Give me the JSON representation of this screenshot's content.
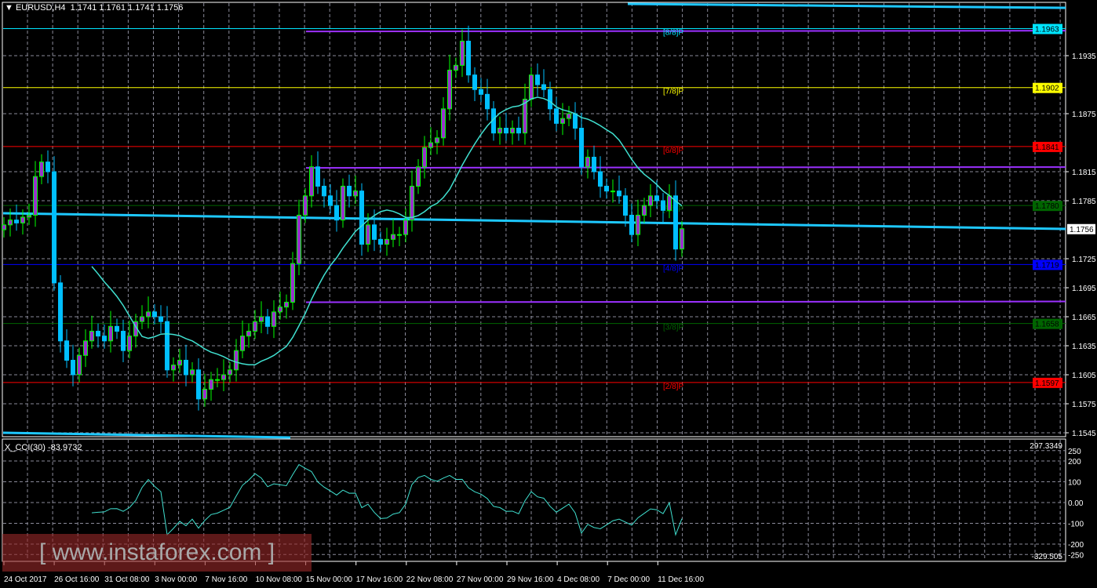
{
  "header": {
    "symbol": "EURUSD,H4",
    "ohlc": "1.1741 1.1761 1.1741 1.1756"
  },
  "indicator": {
    "title": "X_CCI(30) -83.9732",
    "max_label": "297.3349",
    "min_label": "-329.505",
    "ticks": [
      "250",
      "200",
      "100",
      "0.00",
      "-100",
      "-200",
      "-250"
    ],
    "tick_values": [
      250,
      200,
      100,
      0,
      -100,
      -200,
      -250
    ]
  },
  "price_axis": {
    "ticks": [
      "1.1935",
      "1.1875",
      "1.1815",
      "1.1785",
      "1.1725",
      "1.1695",
      "1.1665",
      "1.1635",
      "1.1605",
      "1.1575",
      "1.1545"
    ]
  },
  "murrey_levels": [
    {
      "label": "[8/8]P",
      "price": "1.1963",
      "color": "#00e5ff",
      "text": "#000"
    },
    {
      "label": "[7/8]P",
      "price": "1.1902",
      "color": "#ffff00",
      "text": "#000"
    },
    {
      "label": "[6/8]P",
      "price": "1.1841",
      "color": "#ff0000",
      "text": "#000"
    },
    {
      "label": "[5/8]P",
      "price": "1.1780",
      "color": "#006400",
      "text": "#000"
    },
    {
      "label": "[4/8]P",
      "price": "1.1719",
      "color": "#0000ff",
      "text": "#000"
    },
    {
      "label": "[3/8]P",
      "price": "1.1658",
      "color": "#006400",
      "text": "#000"
    },
    {
      "label": "[2/8]P",
      "price": "1.1597",
      "color": "#ff0000",
      "text": "#000"
    }
  ],
  "current_price": "1.1756",
  "time_axis": [
    "24 Oct 2017",
    "26 Oct 16:00",
    "31 Oct 08:00",
    "3 Nov 00:00",
    "7 Nov 16:00",
    "10 Nov 08:00",
    "15 Nov 00:00",
    "17 Nov 16:00",
    "22 Nov 08:00",
    "27 Nov 00:00",
    "29 Nov 16:00",
    "4 Dec 08:00",
    "7 Dec 00:00",
    "11 Dec 16:00"
  ],
  "closes": [
    1.176,
    1.1765,
    1.1762,
    1.1768,
    1.177,
    1.181,
    1.1825,
    1.1815,
    1.17,
    1.164,
    1.162,
    1.1605,
    1.1625,
    1.164,
    1.165,
    1.1645,
    1.164,
    1.1655,
    1.165,
    1.163,
    1.1645,
    1.166,
    1.1665,
    1.167,
    1.1665,
    1.166,
    1.161,
    1.1615,
    1.162,
    1.1605,
    1.161,
    1.158,
    1.159,
    1.16,
    1.16,
    1.1605,
    1.161,
    1.163,
    1.1645,
    1.165,
    1.166,
    1.1665,
    1.1655,
    1.167,
    1.1675,
    1.168,
    1.172,
    1.177,
    1.179,
    1.182,
    1.18,
    1.179,
    1.178,
    1.1765,
    1.18,
    1.179,
    1.1795,
    1.174,
    1.176,
    1.1745,
    1.174,
    1.1745,
    1.175,
    1.175,
    1.1765,
    1.18,
    1.182,
    1.184,
    1.1845,
    1.185,
    1.188,
    1.192,
    1.1925,
    1.195,
    1.1915,
    1.19,
    1.1895,
    1.188,
    1.1855,
    1.186,
    1.1855,
    1.186,
    1.1855,
    1.189,
    1.1915,
    1.1905,
    1.19,
    1.188,
    1.1865,
    1.187,
    1.1875,
    1.186,
    1.182,
    1.183,
    1.1815,
    1.18,
    1.1795,
    1.1795,
    1.179,
    1.177,
    1.175,
    1.177,
    1.178,
    1.179,
    1.1785,
    1.1775,
    1.179,
    1.1735,
    1.1756
  ],
  "colors": {
    "bull_body": "#9932cc",
    "bull_wick": "#00ff00",
    "bear_body": "#00bfff",
    "ma": "#40e0d0",
    "grid": "#8a8a99",
    "trend": "#1ec8ff",
    "purple": "#9b30ff"
  },
  "watermark": "[ www.instaforex.com ]"
}
